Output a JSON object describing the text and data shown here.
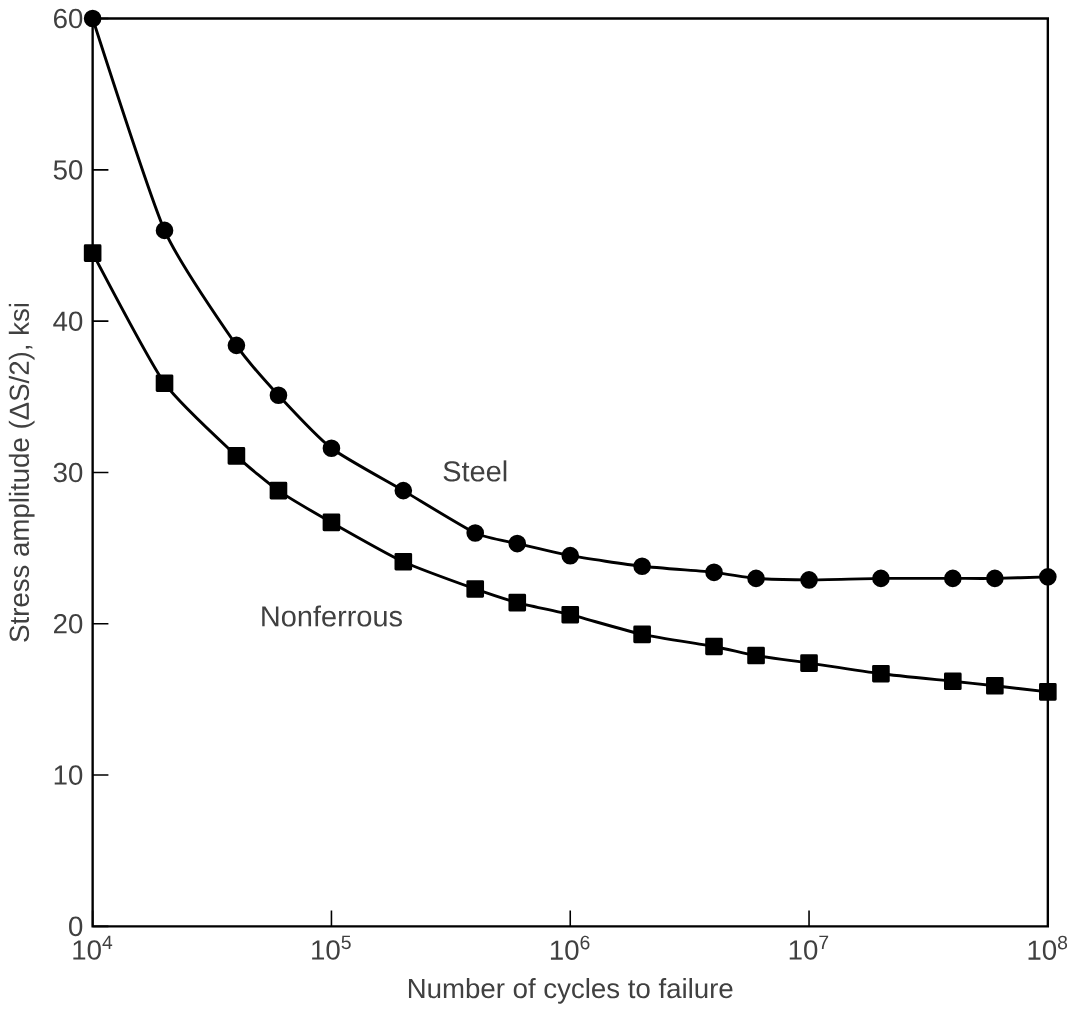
{
  "chart_data": {
    "type": "line",
    "xlabel": "Number of cycles to failure",
    "ylabel": "Stress amplitude (ΔS/2), ksi",
    "log": "x",
    "grid": false,
    "xlim": [
      10000,
      100000000
    ],
    "ylim": [
      0,
      60
    ],
    "xticks": [
      {
        "value": 10000,
        "label": "10$^{4}$"
      },
      {
        "value": 100000,
        "label": "10$^{5}$"
      },
      {
        "value": 1000000,
        "label": "10$^{6}$"
      },
      {
        "value": 10000000,
        "label": "10$^{7}$"
      },
      {
        "value": 100000000,
        "label": "10$^{8}$"
      }
    ],
    "yticks": [
      0,
      10,
      20,
      30,
      40,
      50,
      60
    ],
    "series": [
      {
        "name": "Steel",
        "color": "#000000",
        "marker": "circle",
        "x": [
          10000,
          20000,
          40000,
          60000,
          100000,
          200000,
          400000,
          600000,
          1000000,
          2000000,
          4000000,
          6000000,
          10000000,
          20000000,
          40000000,
          60000000,
          100000000
        ],
        "values": [
          60,
          46,
          38.4,
          35.1,
          31.6,
          28.8,
          26,
          25.3,
          24.5,
          23.8,
          23.4,
          23,
          22.9,
          23,
          23,
          23,
          23.1
        ]
      },
      {
        "name": "Nonferrous",
        "color": "#000000",
        "marker": "square",
        "x": [
          10000,
          20000,
          40000,
          60000,
          100000,
          200000,
          400000,
          600000,
          1000000,
          2000000,
          4000000,
          6000000,
          10000000,
          20000000,
          40000000,
          60000000,
          100000000
        ],
        "values": [
          44.5,
          35.9,
          31.1,
          28.8,
          26.7,
          24.1,
          22.3,
          21.4,
          20.6,
          19.3,
          18.5,
          17.9,
          17.4,
          16.7,
          16.2,
          15.9,
          15.5
        ]
      }
    ]
  }
}
